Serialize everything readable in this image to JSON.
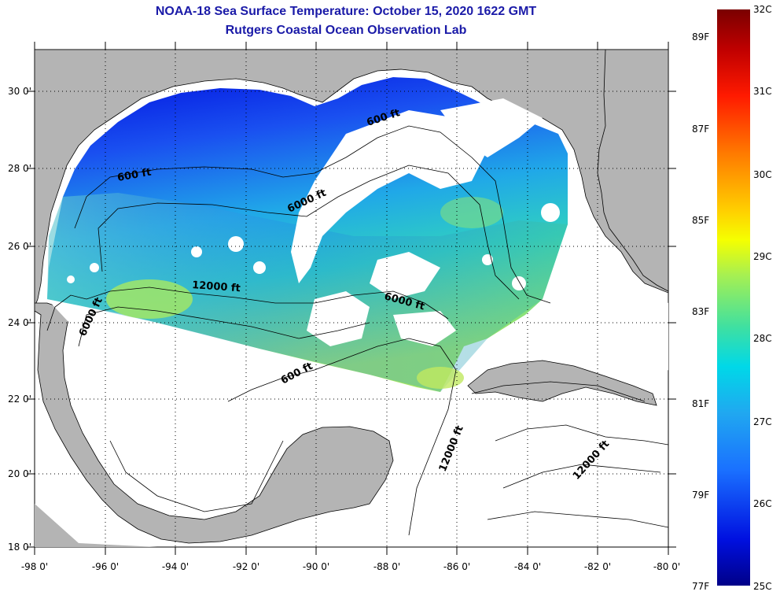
{
  "header": {
    "title": "NOAA-18 Sea Surface Temperature:  October 15, 2020 1622 GMT",
    "subtitle": "Rutgers Coastal Ocean Observation Lab"
  },
  "axes": {
    "longitude_labels": [
      "-98 0'",
      "-96 0'",
      "-94 0'",
      "-92 0'",
      "-90 0'",
      "-88 0'",
      "-86 0'",
      "-84 0'",
      "-82 0'",
      "-80 0'"
    ],
    "latitude_labels": [
      "30 0'",
      "28 0'",
      "26 0'",
      "24 0'",
      "22 0'",
      "20 0'",
      "18 0'"
    ]
  },
  "contours": {
    "c1": "600 ft",
    "c2": "6000 ft",
    "c3": "12000 ft"
  },
  "colorbar": {
    "celsius": [
      "32C",
      "31C",
      "30C",
      "29C",
      "28C",
      "27C",
      "26C",
      "25C"
    ],
    "fahrenheit": [
      "89F",
      "87F",
      "85F",
      "83F",
      "81F",
      "79F",
      "77F"
    ]
  },
  "colors": {
    "land": "#b4b4b4",
    "title": "#1a1aa8",
    "cold": "#0010e0",
    "warm": "#a8f050"
  }
}
